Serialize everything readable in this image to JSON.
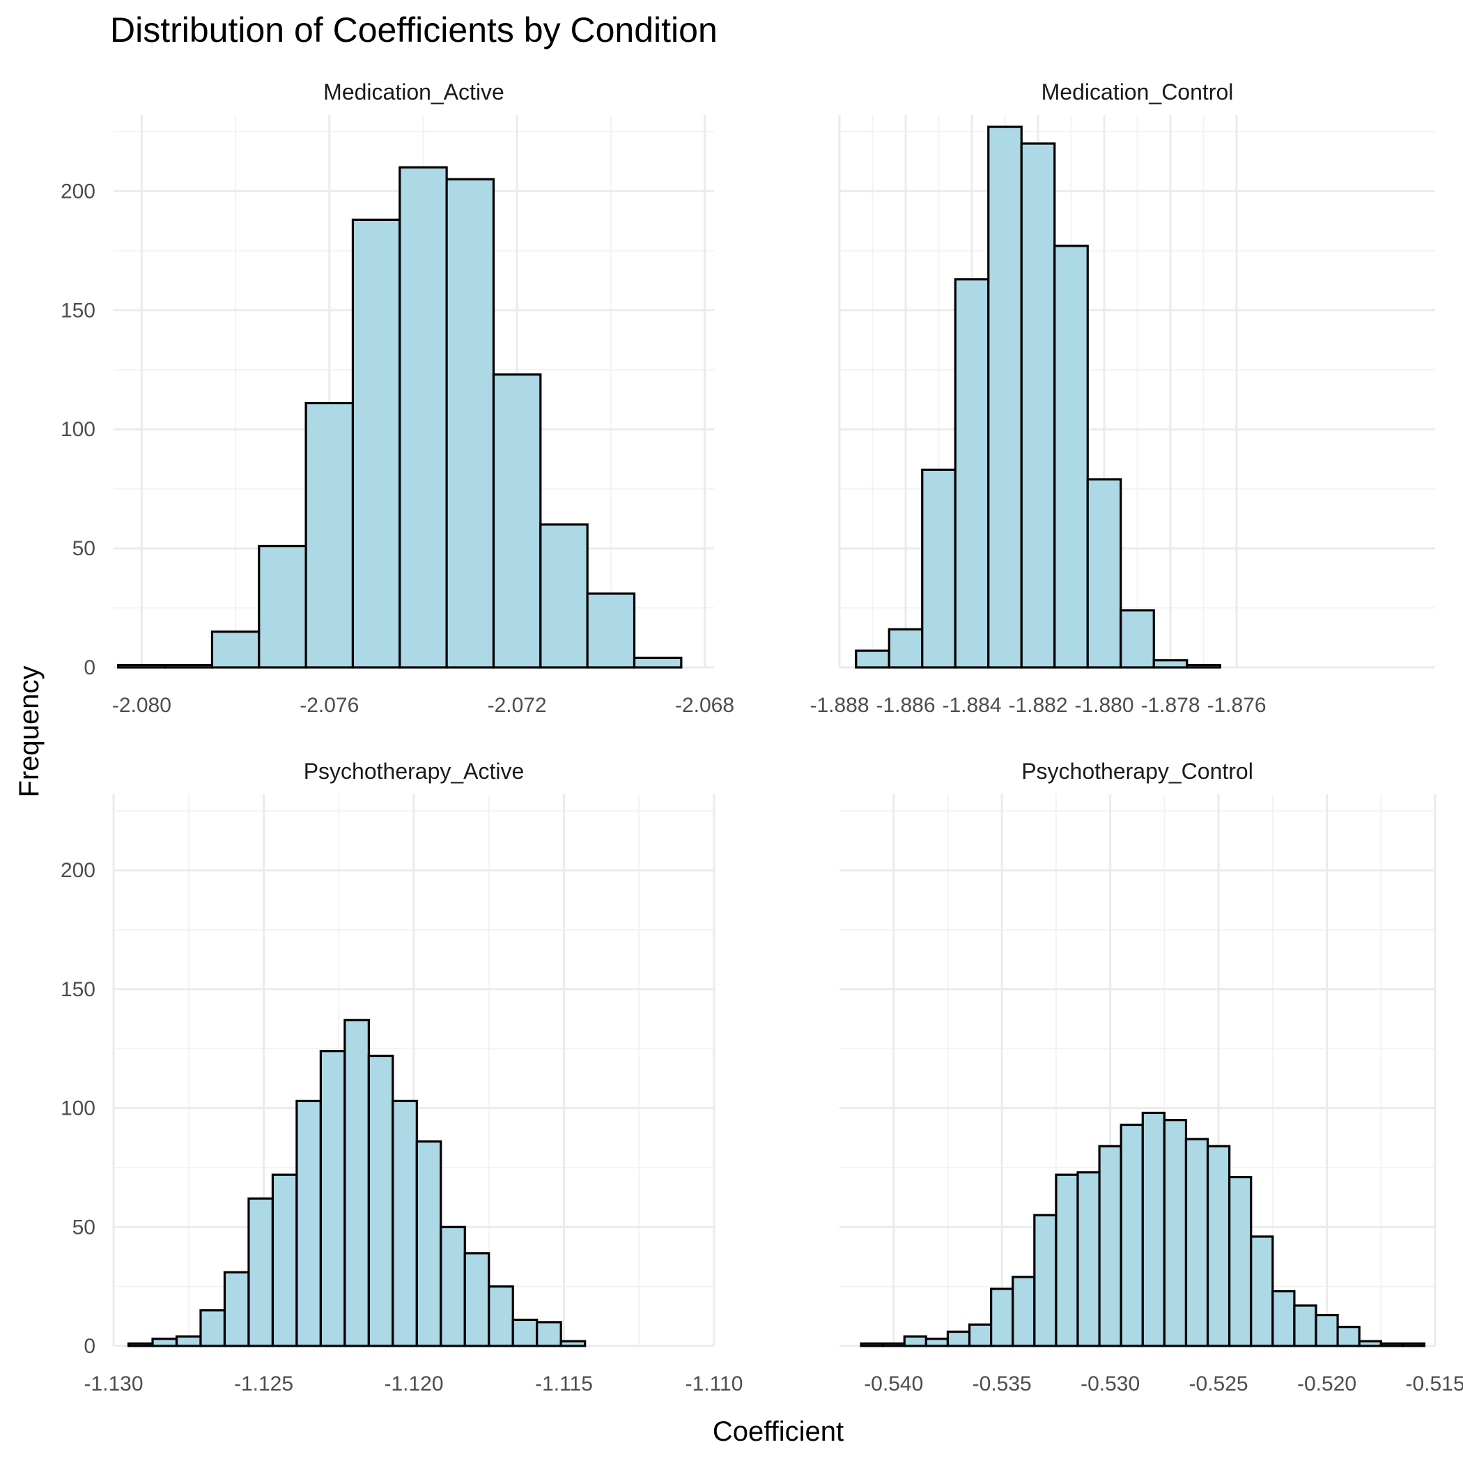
{
  "title": "Distribution of Coefficients by Condition",
  "colors": {
    "bar_fill": "#add8e6",
    "bar_stroke": "#000000",
    "grid_major": "#ebebeb",
    "grid_minor": "#f3f3f3",
    "background": "#ffffff"
  },
  "chart_data": {
    "type": "bar",
    "subtype": "histogram-facets",
    "title": "Distribution of Coefficients by Condition",
    "xlabel": "Coefficient",
    "ylabel": "Frequency",
    "ylim": [
      0,
      232
    ],
    "y_ticks": [
      0,
      50,
      100,
      150,
      200
    ],
    "y_tick_labels": [
      "0",
      "50",
      "100",
      "150",
      "200"
    ],
    "grid": true,
    "legend": "none",
    "panels": [
      {
        "name": "Medication_Active",
        "xlim": [
          -2.0806,
          -2.0678
        ],
        "x_ticks": [
          -2.08,
          -2.076,
          -2.072,
          -2.068
        ],
        "x_tick_labels": [
          "-2.080",
          "-2.076",
          "-2.072",
          "-2.068"
        ],
        "bin_start": -2.0805,
        "bin_width": 0.001,
        "counts": [
          1,
          1,
          15,
          51,
          111,
          188,
          210,
          205,
          123,
          60,
          31,
          4
        ]
      },
      {
        "name": "Medication_Control",
        "xlim": [
          -1.888,
          -1.87
        ],
        "x_ticks": [
          -1.888,
          -1.886,
          -1.884,
          -1.882,
          -1.88,
          -1.878,
          -1.876
        ],
        "x_tick_labels": [
          "-1.888",
          "-1.886",
          "-1.884",
          "-1.882",
          "-1.880",
          "-1.878",
          "-1.876"
        ],
        "bin_start": -1.8875,
        "bin_width": 0.001,
        "counts": [
          7,
          16,
          83,
          163,
          227,
          220,
          177,
          79,
          24,
          3,
          1
        ]
      },
      {
        "name": "Psychotherapy_Active",
        "xlim": [
          -1.13,
          -1.11
        ],
        "x_ticks": [
          -1.13,
          -1.125,
          -1.12,
          -1.115,
          -1.11
        ],
        "x_tick_labels": [
          "-1.130",
          "-1.125",
          "-1.120",
          "-1.115",
          "-1.110"
        ],
        "bin_start": -1.1295,
        "bin_width": 0.0008,
        "counts": [
          1,
          3,
          4,
          15,
          31,
          62,
          72,
          103,
          124,
          137,
          122,
          103,
          86,
          50,
          39,
          25,
          11,
          10,
          2
        ]
      },
      {
        "name": "Psychotherapy_Control",
        "xlim": [
          -0.5425,
          -0.515
        ],
        "x_ticks": [
          -0.54,
          -0.535,
          -0.53,
          -0.525,
          -0.52,
          -0.515
        ],
        "x_tick_labels": [
          "-0.540",
          "-0.535",
          "-0.530",
          "-0.525",
          "-0.520",
          "-0.515"
        ],
        "bin_start": -0.5415,
        "bin_width": 0.001,
        "counts": [
          1,
          1,
          4,
          3,
          6,
          9,
          24,
          29,
          55,
          72,
          73,
          84,
          93,
          98,
          95,
          87,
          84,
          71,
          46,
          23,
          17,
          13,
          8,
          2,
          1,
          1
        ]
      }
    ]
  }
}
